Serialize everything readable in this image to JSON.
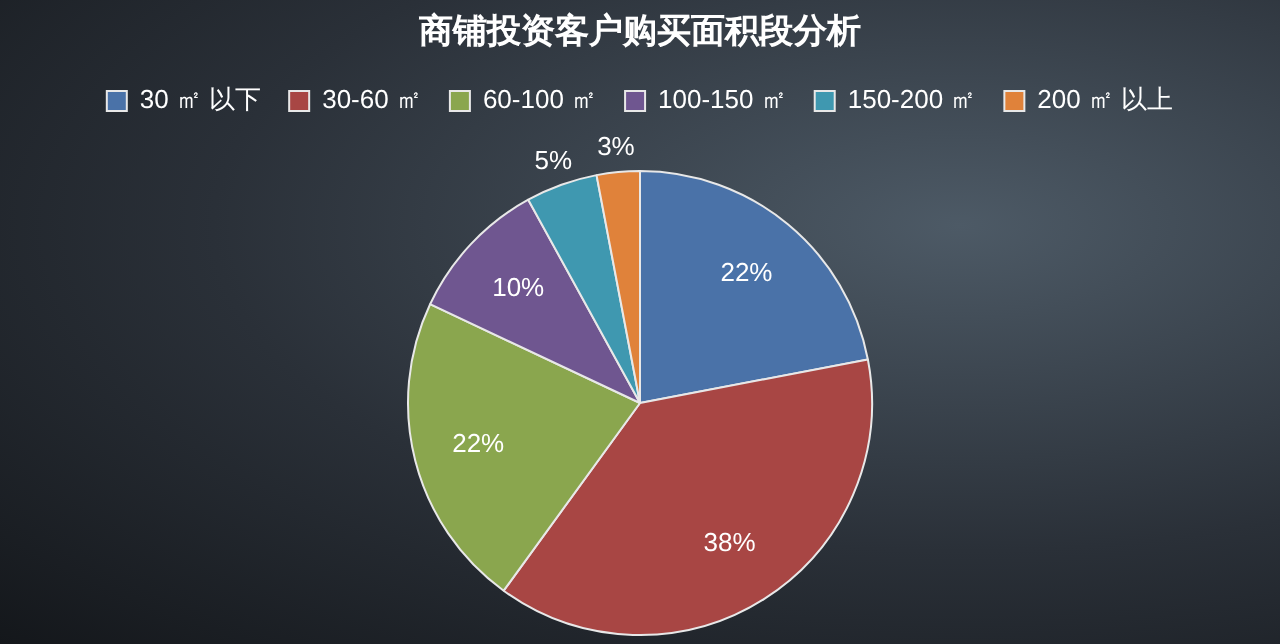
{
  "chart_data": {
    "type": "pie",
    "title": "商铺投资客户购买面积段分析",
    "categories": [
      "30 ㎡ 以下",
      "30-60 ㎡",
      "60-100 ㎡",
      "100-150 ㎡",
      "150-200 ㎡",
      "200 ㎡ 以上"
    ],
    "values": [
      22,
      38,
      22,
      10,
      5,
      3
    ],
    "colors": [
      "#4a72a8",
      "#a84644",
      "#8aa64e",
      "#6f5690",
      "#3f98b0",
      "#e0823a"
    ],
    "value_labels": [
      "22%",
      "38%",
      "22%",
      "10%",
      "5%",
      "3%"
    ],
    "legend": "top"
  }
}
